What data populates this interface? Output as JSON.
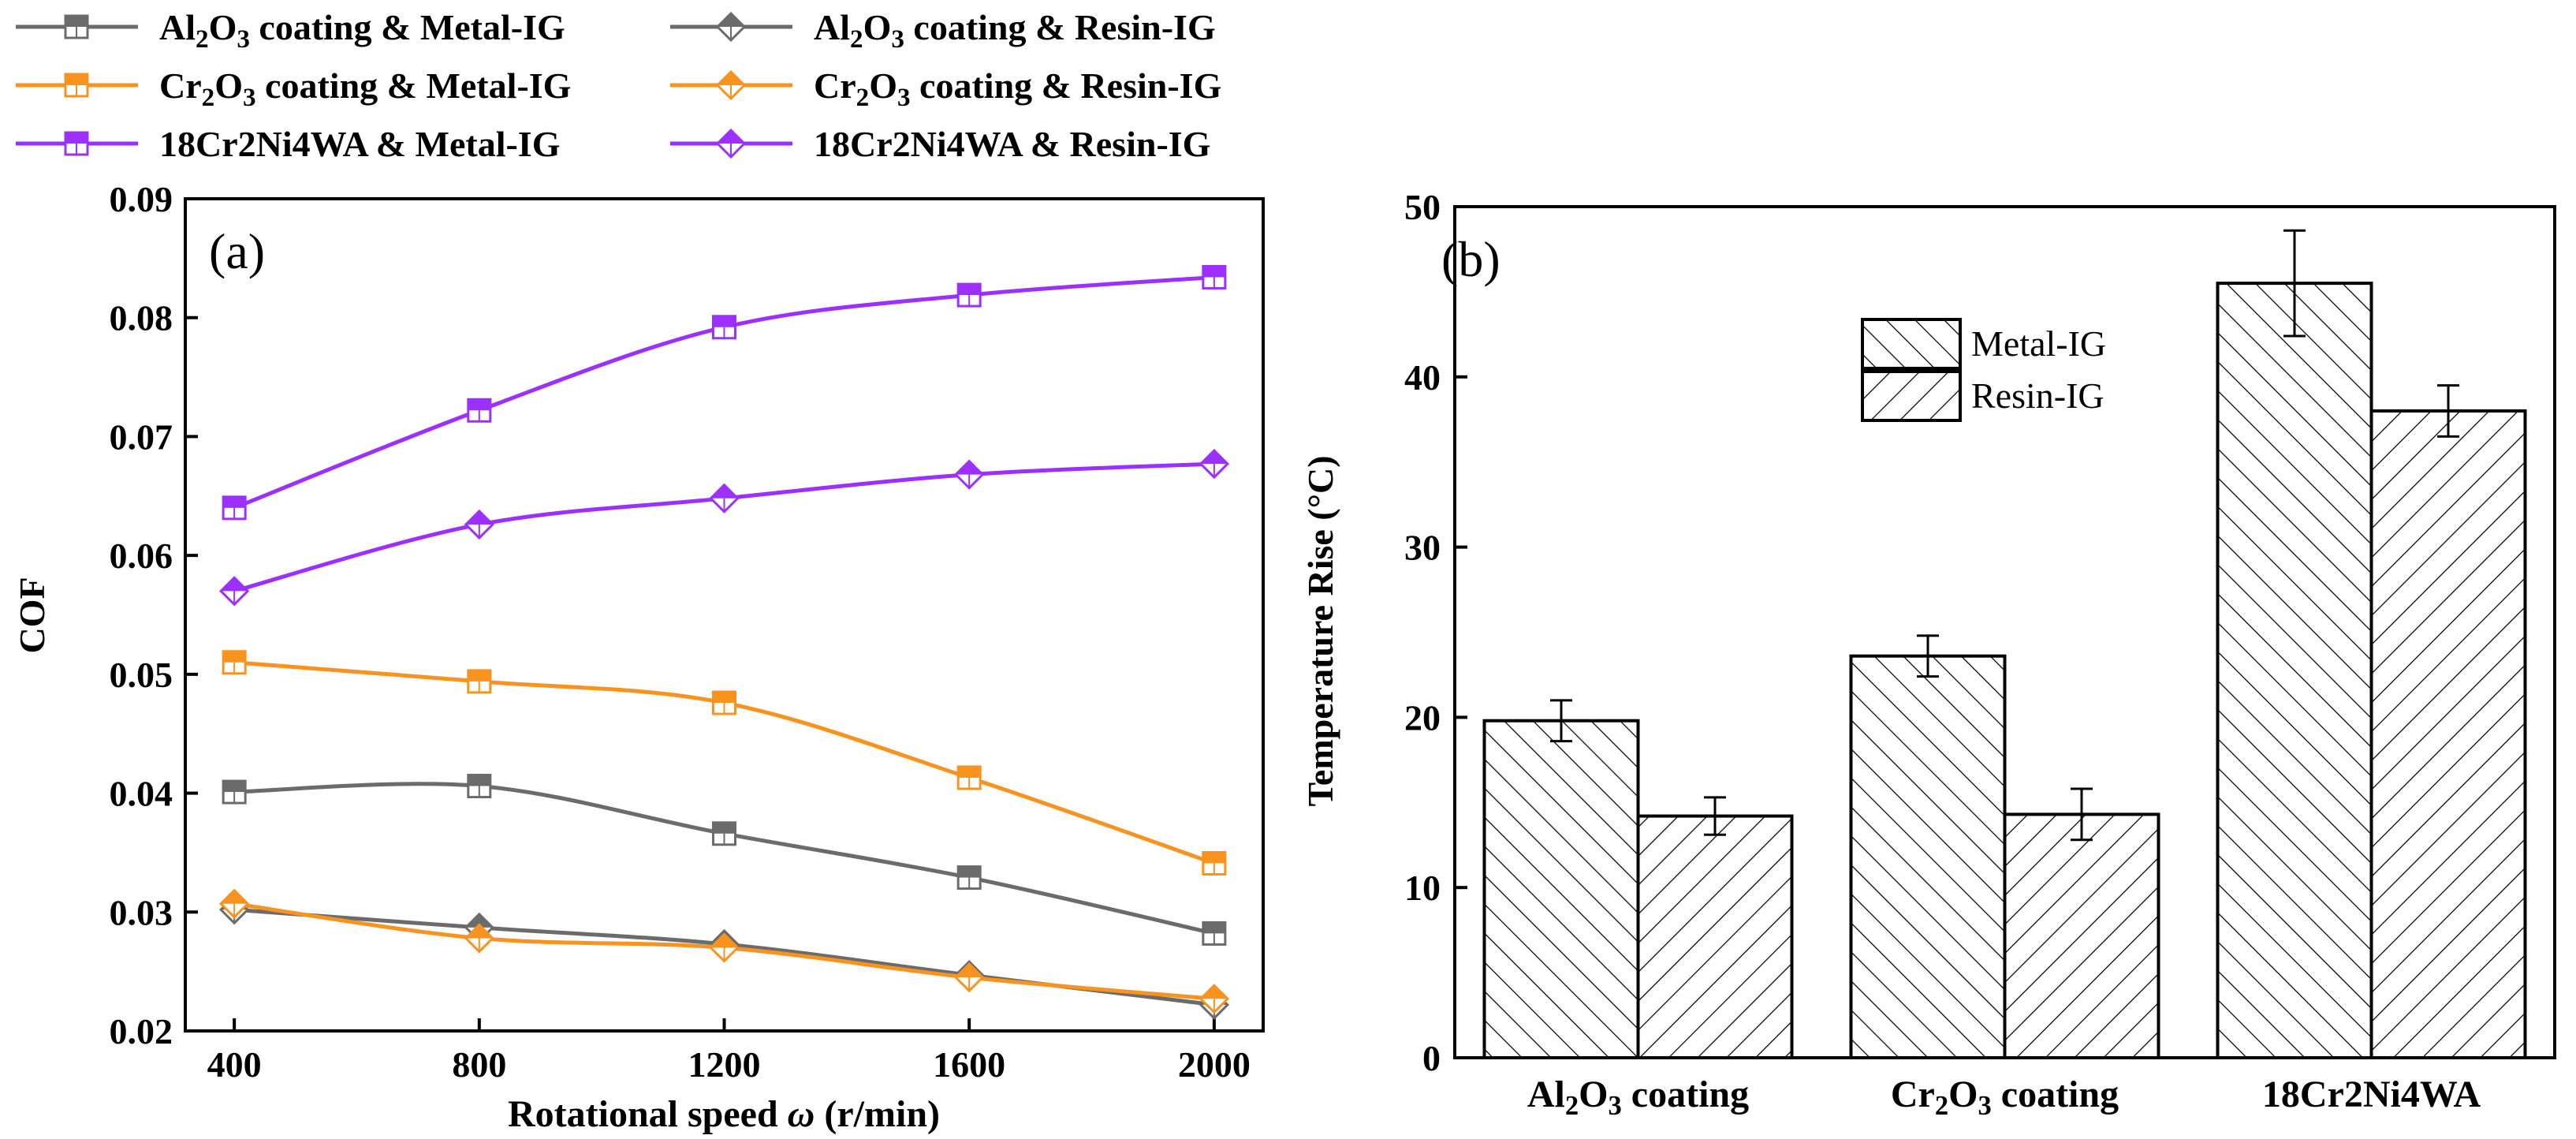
{
  "chart_data": [
    {
      "type": "line",
      "panel_label": "(a)",
      "xlabel_prefix": "Rotational speed ",
      "xlabel_var": "ω",
      "xlabel_suffix": " (r/min)",
      "ylabel": "COF",
      "x": [
        400,
        800,
        1200,
        1600,
        2000
      ],
      "xticks": [
        400,
        800,
        1200,
        1600,
        2000
      ],
      "yticks": [
        "0.02",
        "0.03",
        "0.04",
        "0.05",
        "0.06",
        "0.07",
        "0.08",
        "0.09"
      ],
      "xlim": [
        320,
        2080
      ],
      "ylim": [
        0.02,
        0.09
      ],
      "series": [
        {
          "name": "Al2O3 coating & Metal-IG",
          "legend_parts": [
            [
              "Al",
              ""
            ],
            [
              "2",
              "sub"
            ],
            [
              "O",
              ""
            ],
            [
              "3",
              "sub"
            ],
            [
              " coating & Metal-IG",
              ""
            ]
          ],
          "marker": "square",
          "color": "#6b6b6b",
          "values": [
            0.0401,
            0.0406,
            0.0366,
            0.0329,
            0.0282
          ]
        },
        {
          "name": "Al2O3 coating & Resin-IG",
          "legend_parts": [
            [
              "Al",
              ""
            ],
            [
              "2",
              "sub"
            ],
            [
              "O",
              ""
            ],
            [
              "3",
              "sub"
            ],
            [
              " coating & Resin-IG",
              ""
            ]
          ],
          "marker": "diamond",
          "color": "#6b6b6b",
          "values": [
            0.0302,
            0.0287,
            0.0273,
            0.0247,
            0.0222
          ]
        },
        {
          "name": "Cr2O3 coating & Metal-IG",
          "legend_parts": [
            [
              "Cr",
              ""
            ],
            [
              "2",
              "sub"
            ],
            [
              "O",
              ""
            ],
            [
              "3",
              "sub"
            ],
            [
              " coating & Metal-IG",
              ""
            ]
          ],
          "marker": "square",
          "color": "#f7931e",
          "values": [
            0.051,
            0.0494,
            0.0476,
            0.0413,
            0.0341
          ]
        },
        {
          "name": "Cr2O3 coating & Resin-IG",
          "legend_parts": [
            [
              "Cr",
              ""
            ],
            [
              "2",
              "sub"
            ],
            [
              "O",
              ""
            ],
            [
              "3",
              "sub"
            ],
            [
              " coating & Resin-IG",
              ""
            ]
          ],
          "marker": "diamond",
          "color": "#f7931e",
          "values": [
            0.0307,
            0.0278,
            0.027,
            0.0245,
            0.0227
          ]
        },
        {
          "name": "18Cr2Ni4WA & Metal-IG",
          "legend_parts": [
            [
              "18Cr2Ni4WA & Metal-IG",
              ""
            ]
          ],
          "marker": "square",
          "color": "#9b30ff",
          "values": [
            0.064,
            0.0722,
            0.0792,
            0.0819,
            0.0834
          ]
        },
        {
          "name": "18Cr2Ni4WA & Resin-IG",
          "legend_parts": [
            [
              "18Cr2Ni4WA & Resin-IG",
              ""
            ]
          ],
          "marker": "diamond",
          "color": "#9b30ff",
          "values": [
            0.057,
            0.0626,
            0.0648,
            0.0668,
            0.0677
          ]
        }
      ]
    },
    {
      "type": "bar",
      "panel_label": "(b)",
      "ylabel": "Temperature Rise (°C)",
      "categories": [
        "Al2O3 coating",
        "Cr2O3 coating",
        "18Cr2Ni4WA"
      ],
      "category_parts": [
        [
          [
            "Al",
            ""
          ],
          [
            "2",
            "sub"
          ],
          [
            "O",
            ""
          ],
          [
            "3",
            "sub"
          ],
          [
            " coating",
            ""
          ]
        ],
        [
          [
            "Cr",
            ""
          ],
          [
            "2",
            "sub"
          ],
          [
            "O",
            ""
          ],
          [
            "3",
            "sub"
          ],
          [
            " coating",
            ""
          ]
        ],
        [
          [
            "18Cr2Ni4WA",
            ""
          ]
        ]
      ],
      "ylim": [
        0,
        50
      ],
      "yticks": [
        "0",
        "10",
        "20",
        "30",
        "40",
        "50"
      ],
      "series": [
        {
          "name": "Metal-IG",
          "hatch": "back-diagonal",
          "values": [
            19.8,
            23.6,
            45.5
          ],
          "errors": [
            1.2,
            1.2,
            3.1
          ]
        },
        {
          "name": "Resin-IG",
          "hatch": "forward-diagonal",
          "values": [
            14.2,
            14.3,
            38.0
          ],
          "errors": [
            1.1,
            1.5,
            1.5
          ]
        }
      ]
    }
  ]
}
